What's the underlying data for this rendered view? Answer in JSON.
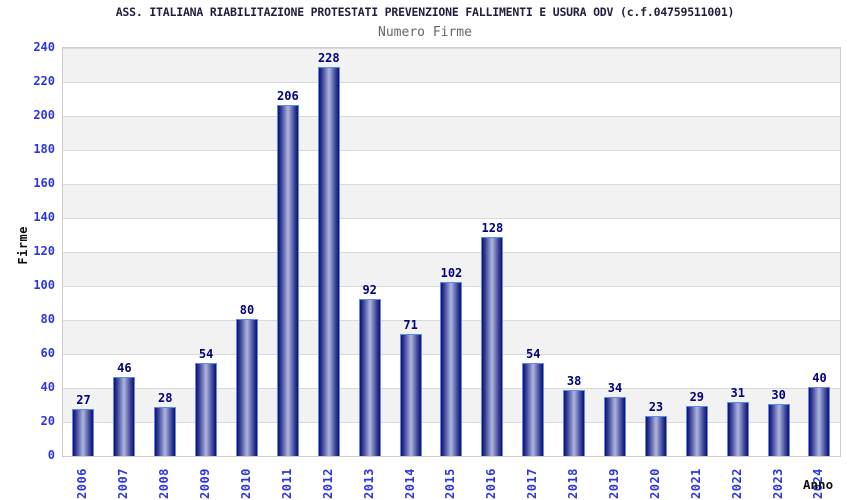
{
  "chart_data": {
    "type": "bar",
    "title": "ASS. ITALIANA RIABILITAZIONE PROTESTATI PREVENZIONE FALLIMENTI E USURA ODV (c.f.04759511001)",
    "subtitle": "Numero Firme",
    "xlabel": "Anno",
    "ylabel": "Firme",
    "categories": [
      "2006",
      "2007",
      "2008",
      "2009",
      "2010",
      "2011",
      "2012",
      "2013",
      "2014",
      "2015",
      "2016",
      "2017",
      "2018",
      "2019",
      "2020",
      "2021",
      "2022",
      "2023",
      "2024"
    ],
    "values": [
      27,
      46,
      28,
      54,
      80,
      206,
      228,
      92,
      71,
      102,
      128,
      54,
      38,
      34,
      23,
      29,
      31,
      30,
      40
    ],
    "ylim": [
      0,
      240
    ],
    "ytick_step": 20,
    "grid": "horizontal-bands-alternating",
    "legend": "none",
    "value_labels": "above-bars",
    "x_tick_rotation": 90
  },
  "colors": {
    "title": "#1f1f3d",
    "subtitle": "#666666",
    "tick_label": "#2b35e0",
    "value_label": "#000080",
    "axis_title": "#111111",
    "bar_dark": "#10106e",
    "bar_mid": "#3d459c",
    "bar_light": "#a9b0d8",
    "bar_border": "#5c8cf0",
    "band_gray": "#f2f2f2",
    "band_white": "#ffffff",
    "gridline": "#d9d9d9",
    "plot_border": "#cccccc"
  }
}
